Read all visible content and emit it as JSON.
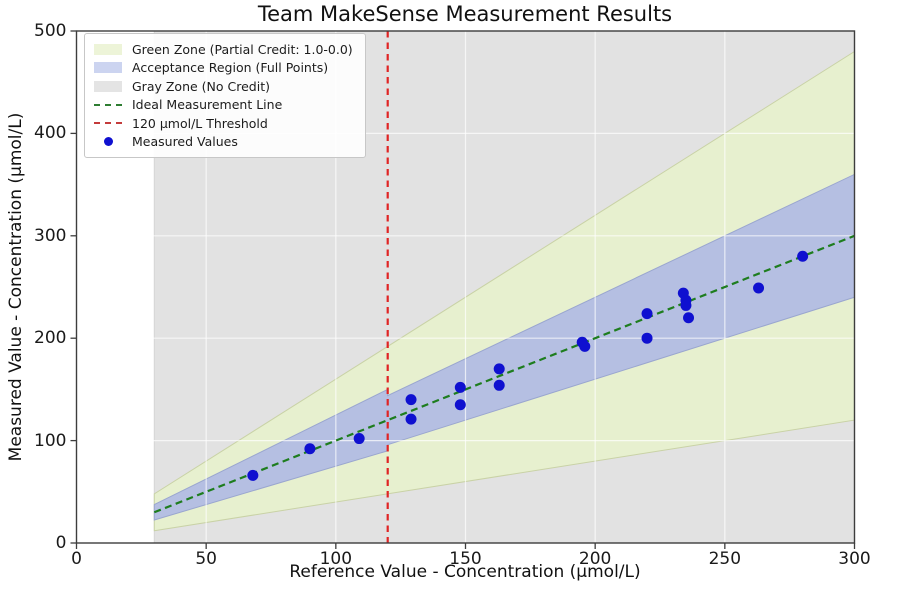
{
  "chart_data": {
    "type": "scatter",
    "title": "Team MakeSense Measurement Results",
    "xlabel": "Reference Value - Concentration (μmol/L)",
    "ylabel": "Measured Value - Concentration (μmol/L)",
    "xlim": [
      0,
      300
    ],
    "ylim": [
      0,
      500
    ],
    "x_ticks": [
      0,
      50,
      100,
      150,
      200,
      250,
      300
    ],
    "y_ticks": [
      0,
      100,
      200,
      300,
      400,
      500
    ],
    "grid": true,
    "legend_position": "upper left",
    "zones": [
      {
        "name": "gray-zone",
        "color": "#e2e2e2",
        "edge": "#d6d6d6",
        "polygon": [
          [
            30,
            0
          ],
          [
            300,
            0
          ],
          [
            300,
            500
          ],
          [
            30,
            500
          ]
        ]
      },
      {
        "name": "green-zone",
        "color": "#e7f0cf",
        "edge": "#c9d2a6",
        "polygon": [
          [
            30,
            12
          ],
          [
            300,
            120
          ],
          [
            300,
            480
          ],
          [
            30,
            48
          ]
        ]
      },
      {
        "name": "acceptance-region",
        "color": "#b5bfe2",
        "edge": "#9aa6cf",
        "polygon": [
          [
            30,
            22.5
          ],
          [
            120,
            90
          ],
          [
            120,
            96
          ],
          [
            300,
            240
          ],
          [
            300,
            360
          ],
          [
            120,
            144
          ],
          [
            120,
            150
          ],
          [
            30,
            37.5
          ]
        ]
      }
    ],
    "ideal_line": {
      "from": [
        30,
        30
      ],
      "to": [
        300,
        300
      ],
      "color": "#1e7d1e",
      "style": "dashed"
    },
    "threshold_line": {
      "x": 120,
      "color": "#e02424",
      "style": "dashed"
    },
    "points_color": "#0f10d0",
    "points": [
      [
        68,
        66
      ],
      [
        90,
        92
      ],
      [
        109,
        102
      ],
      [
        129,
        121
      ],
      [
        129,
        140
      ],
      [
        148,
        135
      ],
      [
        148,
        152
      ],
      [
        163,
        154
      ],
      [
        163,
        170
      ],
      [
        195,
        196
      ],
      [
        196,
        192
      ],
      [
        220,
        200
      ],
      [
        220,
        224
      ],
      [
        234,
        244
      ],
      [
        235,
        237
      ],
      [
        235,
        232
      ],
      [
        236,
        220
      ],
      [
        263,
        249
      ],
      [
        280,
        280
      ]
    ],
    "legend": [
      {
        "label": "Green Zone (Partial Credit: 1.0-0.0)",
        "swatch": "green-zone",
        "type": "fill",
        "color": "#edf4d8"
      },
      {
        "label": "Acceptance Region (Full Points)",
        "swatch": "acceptance-region",
        "type": "fill",
        "color": "#ccd4f0"
      },
      {
        "label": "Gray Zone (No Credit)",
        "swatch": "gray-zone",
        "type": "fill",
        "color": "#e4e4e4"
      },
      {
        "label": "Ideal Measurement Line",
        "swatch": "ideal-measurement-line",
        "type": "dash",
        "color": "#2e7d32"
      },
      {
        "label": "120 μmol/L Threshold",
        "swatch": "threshold-line",
        "type": "dash",
        "color": "#c43b3b"
      },
      {
        "label": "Measured Values",
        "swatch": "measured-values",
        "type": "dot",
        "color": "#0f10d0"
      }
    ],
    "axis_color": "#3d3d3d",
    "grid_color": "rgba(255,255,255,0.7)"
  }
}
